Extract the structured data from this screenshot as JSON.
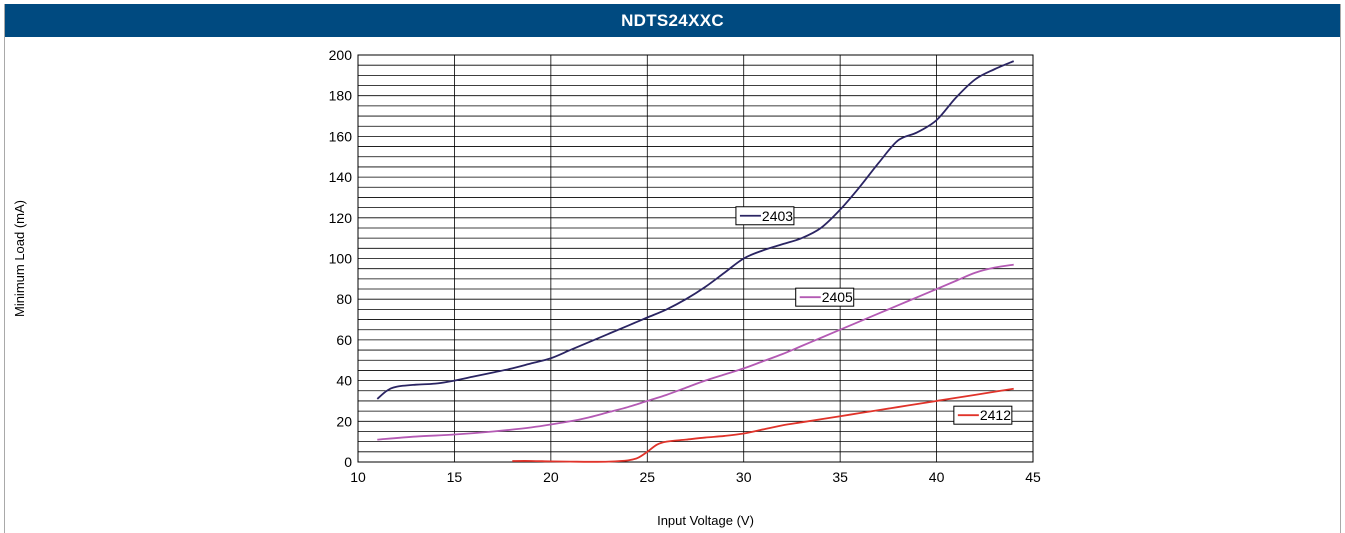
{
  "title": "NDTS24XXC",
  "colors": {
    "header_bg": "#004a80",
    "header_text": "#ffffff",
    "grid": "#000000",
    "series_2403": "#2b2563",
    "series_2405": "#b45ab4",
    "series_2412": "#e0332a"
  },
  "chart_data": {
    "type": "line",
    "title": "NDTS24XXC",
    "xlabel": "Input Voltage (V)",
    "ylabel": "Minimum Load (mA)",
    "xlim": [
      10,
      45
    ],
    "ylim": [
      0,
      200
    ],
    "x_ticks": [
      10,
      15,
      20,
      25,
      30,
      35,
      40,
      45
    ],
    "y_ticks": [
      0,
      20,
      40,
      60,
      80,
      100,
      120,
      140,
      160,
      180,
      200
    ],
    "minor_y_step": 5,
    "grid": true,
    "series": [
      {
        "name": "2403",
        "color": "#2b2563",
        "x": [
          11,
          11.5,
          12,
          13,
          14,
          15,
          16,
          17,
          18,
          19,
          20,
          21,
          22,
          23,
          24,
          25,
          26,
          27,
          28,
          29,
          30,
          31,
          32,
          33,
          34,
          35,
          36,
          37,
          38,
          39,
          40,
          41,
          42,
          43,
          44
        ],
        "y": [
          31,
          35,
          37,
          38,
          38.5,
          40,
          42,
          44,
          46,
          48.5,
          51,
          55,
          59,
          63,
          67,
          71,
          75,
          80,
          86,
          93,
          100,
          104,
          107,
          110,
          115,
          124,
          135,
          147,
          158,
          162,
          168,
          179,
          188,
          193,
          197
        ]
      },
      {
        "name": "2405",
        "color": "#b45ab4",
        "x": [
          11,
          13,
          15,
          17,
          19,
          21,
          22,
          23,
          24,
          25,
          26,
          27,
          28,
          29,
          30,
          31,
          32,
          33,
          34,
          35,
          36,
          37,
          38,
          39,
          40,
          41,
          42,
          43,
          44
        ],
        "y": [
          11,
          12.5,
          13.5,
          15,
          17,
          20,
          22,
          24.5,
          27,
          30,
          33,
          36.5,
          40,
          43,
          46,
          49.5,
          53,
          57,
          61,
          65,
          69,
          73,
          77,
          81,
          85,
          89,
          93,
          95.5,
          97
        ]
      },
      {
        "name": "2412",
        "color": "#e0332a",
        "x": [
          18,
          19,
          20,
          21,
          22,
          23,
          24,
          24.5,
          25,
          25.5,
          26,
          27,
          28,
          29,
          30,
          31,
          32,
          33,
          34,
          35,
          36,
          37,
          38,
          39,
          40,
          41,
          42,
          43,
          44
        ],
        "y": [
          0.5,
          0.5,
          0.3,
          0.2,
          0.1,
          0.2,
          0.8,
          2,
          5,
          8.5,
          10,
          11,
          12,
          12.8,
          14,
          16,
          18,
          19.5,
          21,
          22.5,
          24,
          25.5,
          27,
          28.5,
          30,
          31.5,
          33,
          34.5,
          36
        ]
      }
    ],
    "legend_labels": [
      {
        "series": "2403",
        "text": "2403",
        "at_x": 31.1,
        "at_y": 121
      },
      {
        "series": "2405",
        "text": "2405",
        "at_x": 34.2,
        "at_y": 81
      },
      {
        "series": "2412",
        "text": "2412",
        "at_x": 42.4,
        "at_y": 23
      }
    ]
  }
}
